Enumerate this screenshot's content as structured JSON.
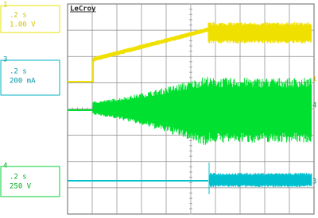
{
  "brand": "LeCroy",
  "channels": [
    {
      "number": "1",
      "timebase": ".2 s",
      "scale": "1.00 V"
    },
    {
      "number": "3",
      "timebase": ".2 s",
      "scale": "200 mA"
    },
    {
      "number": "4",
      "timebase": ".2 s",
      "scale": "250 V"
    }
  ],
  "trace_markers": [
    "1",
    "4",
    "3"
  ]
}
